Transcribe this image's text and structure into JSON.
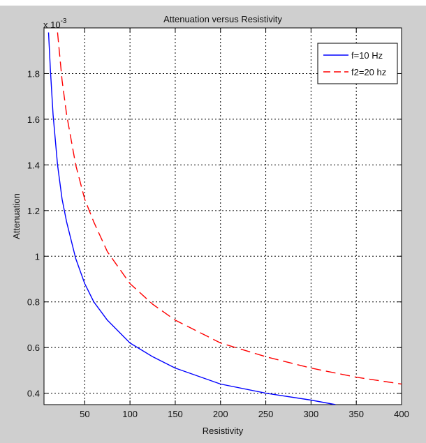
{
  "chart_data": {
    "type": "line",
    "title": "Attenuation versus Resistivity",
    "xlabel": "Resistivity",
    "ylabel": "Attenuation",
    "y_exponent_base": "x 10",
    "y_exponent_power": "-3",
    "xlim": [
      5,
      400
    ],
    "ylim": [
      0.35,
      2.0
    ],
    "y_scale_multiplier": 0.001,
    "grid": true,
    "legend_position": "top-right",
    "xticks": [
      50,
      100,
      150,
      200,
      250,
      300,
      350,
      400
    ],
    "xtick_labels": [
      "50",
      "100",
      "150",
      "200",
      "250",
      "300",
      "350",
      "400"
    ],
    "yticks": [
      0.4,
      0.6,
      0.8,
      1.0,
      1.2,
      1.4,
      1.6,
      1.8
    ],
    "ytick_labels": [
      "0.4",
      "0.6",
      "0.8",
      "1",
      "1.2",
      "1.4",
      "1.6",
      "1.8"
    ],
    "series": [
      {
        "name": "f=10 Hz",
        "color": "#0000ff",
        "style": "solid",
        "x": [
          10,
          12,
          15,
          20,
          25,
          30,
          40,
          50,
          60,
          75,
          100,
          125,
          150,
          200,
          250,
          300,
          327
        ],
        "y": [
          1.98,
          1.82,
          1.62,
          1.4,
          1.25,
          1.15,
          0.99,
          0.88,
          0.8,
          0.72,
          0.62,
          0.56,
          0.51,
          0.44,
          0.4,
          0.37,
          0.35
        ]
      },
      {
        "name": "f2=20 hz",
        "color": "#ff0000",
        "style": "dashed",
        "x": [
          20,
          25,
          30,
          40,
          50,
          60,
          75,
          100,
          125,
          150,
          200,
          250,
          300,
          350,
          400
        ],
        "y": [
          1.98,
          1.77,
          1.62,
          1.4,
          1.25,
          1.15,
          1.02,
          0.88,
          0.79,
          0.72,
          0.62,
          0.56,
          0.51,
          0.47,
          0.44
        ]
      }
    ]
  }
}
